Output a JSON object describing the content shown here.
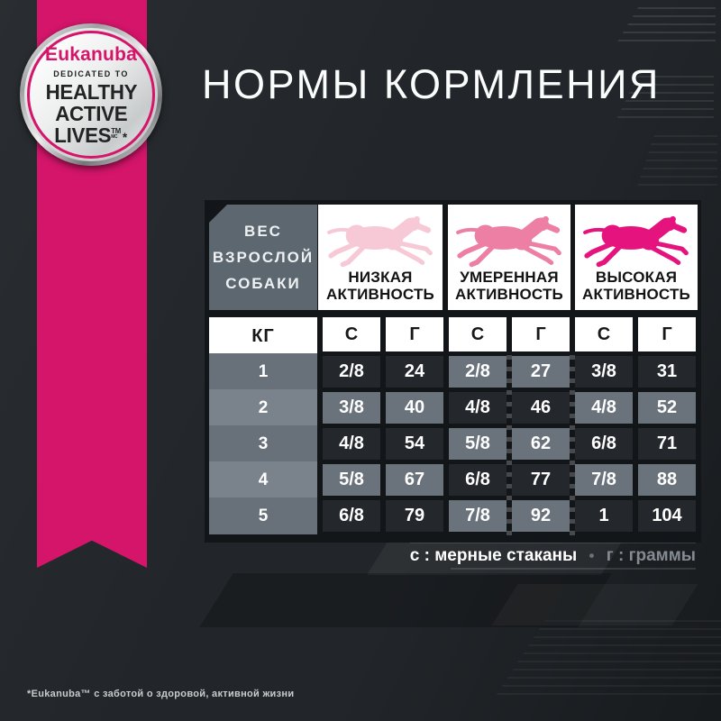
{
  "badge": {
    "brand": "Eukanuba",
    "dedicated": "DEDICATED TO",
    "line1": "HEALTHY",
    "line2": "ACTIVE",
    "line3": "LIVES",
    "tm": "TM",
    "mc": "MC",
    "star": "*"
  },
  "title": "НОРМЫ КОРМЛЕНИЯ",
  "table": {
    "weight_header_lines": [
      "ВЕС",
      "ВЗРОСЛОЙ",
      "СОБАКИ"
    ],
    "kg_label": "КГ",
    "columns": [
      {
        "line1": "НИЗКАЯ",
        "line2": "АКТИВНОСТЬ",
        "dog_color": "#f7c9d7"
      },
      {
        "line1": "УМЕРЕННАЯ",
        "line2": "АКТИВНОСТЬ",
        "dog_color": "#ee7fa4"
      },
      {
        "line1": "ВЫСОКАЯ",
        "line2": "АКТИВНОСТЬ",
        "dog_color": "#e5137d"
      }
    ],
    "unit_headers": [
      "С",
      "Г",
      "С",
      "Г",
      "С",
      "Г"
    ],
    "rows": [
      {
        "kg": "1",
        "values": [
          "2/8",
          "24",
          "2/8",
          "27",
          "3/8",
          "31"
        ]
      },
      {
        "kg": "2",
        "values": [
          "3/8",
          "40",
          "4/8",
          "46",
          "4/8",
          "52"
        ]
      },
      {
        "kg": "3",
        "values": [
          "4/8",
          "54",
          "5/8",
          "62",
          "6/8",
          "71"
        ]
      },
      {
        "kg": "4",
        "values": [
          "5/8",
          "67",
          "6/8",
          "77",
          "7/8",
          "88"
        ]
      },
      {
        "kg": "5",
        "values": [
          "6/8",
          "79",
          "7/8",
          "92",
          "1",
          "104"
        ]
      }
    ]
  },
  "legend": {
    "cups": "с : мерные стаканы",
    "sep": "•",
    "grams": "г : граммы"
  },
  "footnote": "*Eukanuba™ с заботой о здоровой, активной жизни",
  "colors": {
    "ribbon": "#d4156a",
    "brand_pink": "#d4156a",
    "background": "#22262a",
    "cell_dark": "#24282d",
    "cell_grey": "#6a737c",
    "kg_row_dark": "#68717a",
    "kg_row_light": "#7a838c",
    "weight_block": "#5d6770"
  },
  "chart_data": {
    "type": "table",
    "title": "НОРМЫ КОРМЛЕНИЯ",
    "row_header": "ВЕС ВЗРОСЛОЙ СОБАКИ (КГ)",
    "column_groups": [
      "НИЗКАЯ АКТИВНОСТЬ",
      "УМЕРЕННАЯ АКТИВНОСТЬ",
      "ВЫСОКАЯ АКТИВНОСТЬ"
    ],
    "units_per_group": [
      "С",
      "Г"
    ],
    "rows_kg": [
      1,
      2,
      3,
      4,
      5
    ],
    "values": [
      [
        "2/8",
        24,
        "2/8",
        27,
        "3/8",
        31
      ],
      [
        "3/8",
        40,
        "4/8",
        46,
        "4/8",
        52
      ],
      [
        "4/8",
        54,
        "5/8",
        62,
        "6/8",
        71
      ],
      [
        "5/8",
        67,
        "6/8",
        77,
        "7/8",
        88
      ],
      [
        "6/8",
        79,
        "7/8",
        92,
        "1",
        104
      ]
    ],
    "legend": "с : мерные стаканы • г : граммы"
  }
}
